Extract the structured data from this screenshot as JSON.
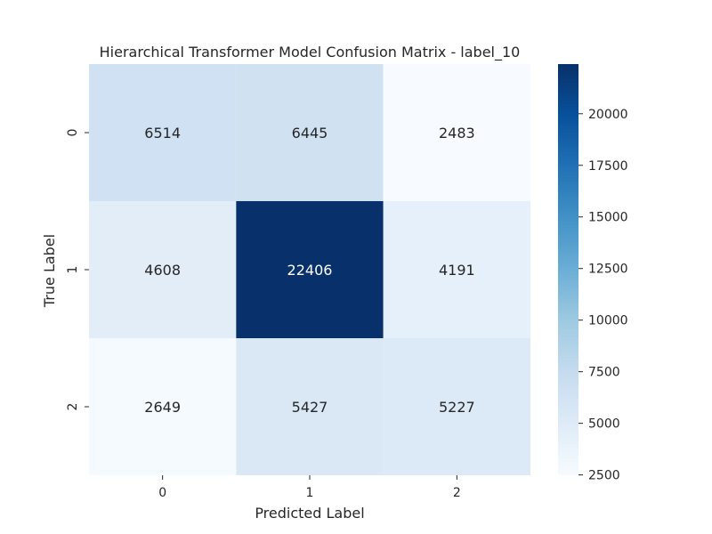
{
  "chart_data": {
    "type": "heatmap",
    "title": "Hierarchical Transformer Model Confusion Matrix - label_10",
    "xlabel": "Predicted Label",
    "ylabel": "True Label",
    "x_categories": [
      "0",
      "1",
      "2"
    ],
    "y_categories": [
      "0",
      "1",
      "2"
    ],
    "values": [
      [
        6514,
        6445,
        2483
      ],
      [
        4608,
        22406,
        4191
      ],
      [
        2649,
        5427,
        5227
      ]
    ],
    "colormap": "Blues",
    "colorbar": {
      "vmin": 2483,
      "vmax": 22406,
      "ticks": [
        2500,
        5000,
        7500,
        10000,
        12500,
        15000,
        17500,
        20000
      ]
    }
  }
}
